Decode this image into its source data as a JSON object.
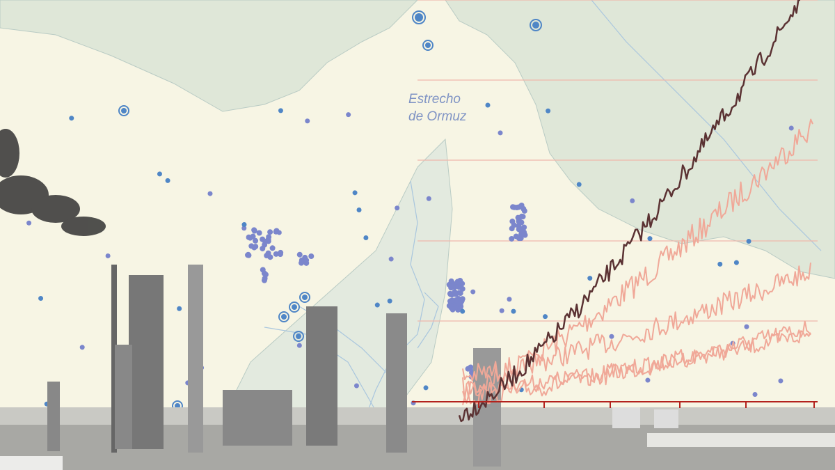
{
  "map": {
    "strait_label_line1": "Estrecho",
    "strait_label_line2": "de Ormuz"
  },
  "colors": {
    "background": "#f7f5e4",
    "land": "#dfe7d8",
    "rivers": "#a9c6de",
    "points": "#7b86cc",
    "points_alt": "#4f86c6",
    "main_line": "#5b3233",
    "other_lines": "#f0a898",
    "grid": "#efb8ac",
    "axis": "#b3221d",
    "refinery": "#8a8a8a"
  },
  "icons": [
    "refinery-photo",
    "smoke-plume"
  ]
}
